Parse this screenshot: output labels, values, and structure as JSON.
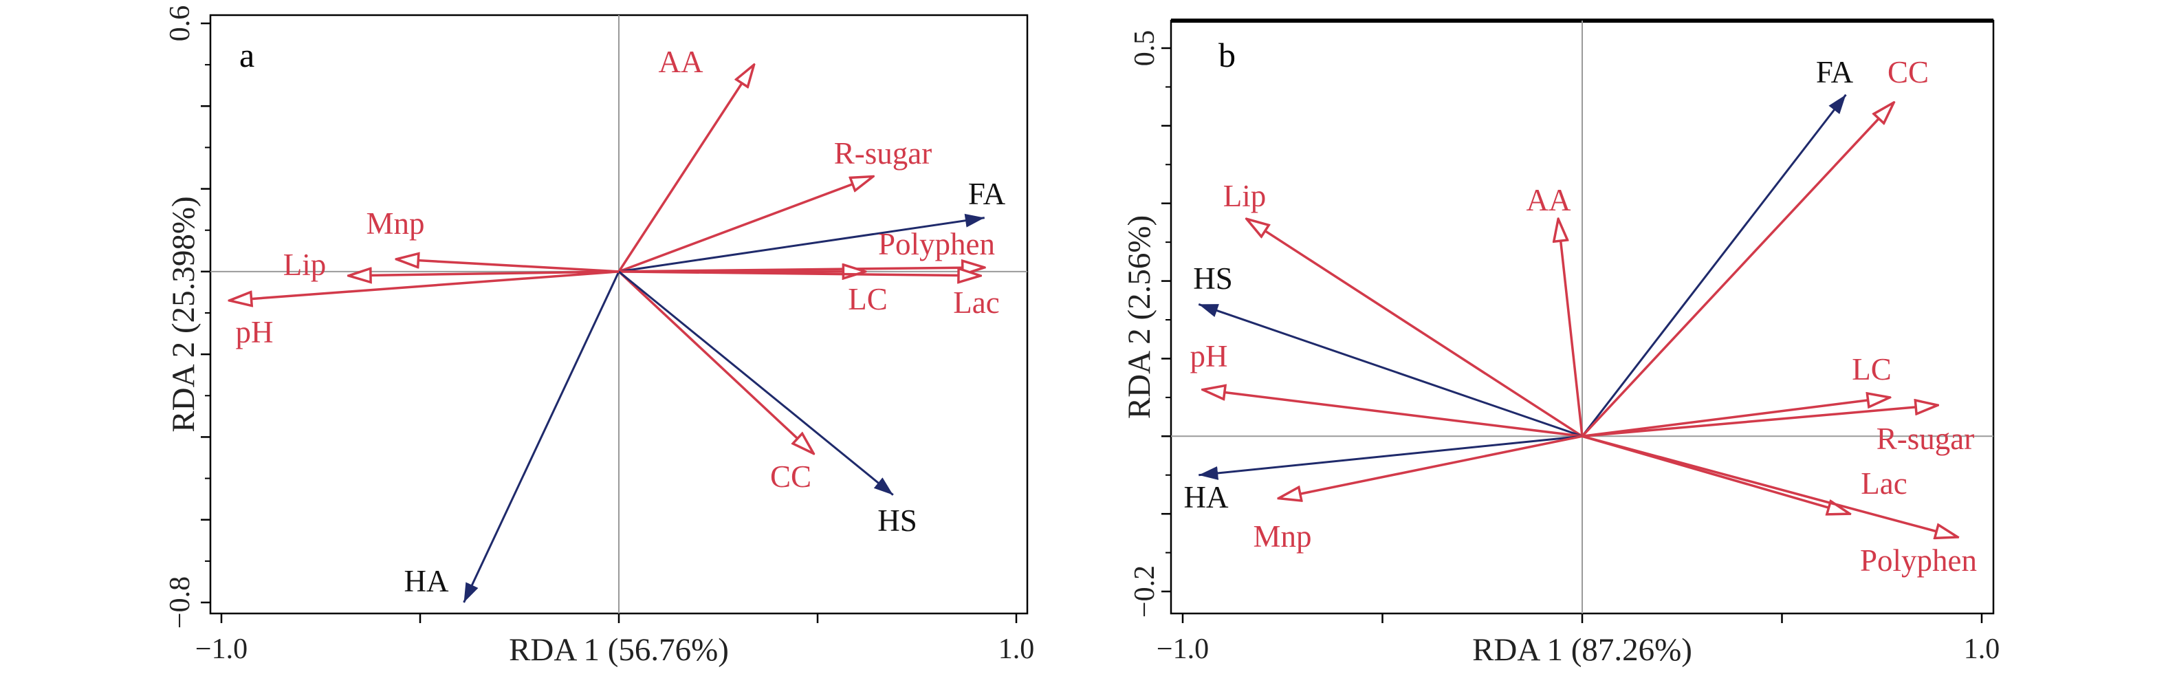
{
  "colors": {
    "response_arrow": "#d23a4a",
    "explanatory_arrow": "#1f2a6b",
    "response_label": "#d23a4a",
    "explanatory_label": "#111111",
    "frame": "#000000",
    "zero_line": "#9a9a9a"
  },
  "chart_data": [
    {
      "type": "scatter",
      "subtype": "biplot-arrows",
      "panel_label": "a",
      "xlabel": "RDA 1 (56.76%)",
      "ylabel": "RDA 2 (25.398%)",
      "xlim": [
        -1.0,
        1.0
      ],
      "ylim": [
        -0.8,
        0.6
      ],
      "x_tick_labels": [
        {
          "value": -1.0,
          "label": "−1.0"
        },
        {
          "value": 1.0,
          "label": "1.0"
        }
      ],
      "y_tick_labels": [
        {
          "value": -0.8,
          "label": "−0.8"
        },
        {
          "value": 0.6,
          "label": "0.6"
        }
      ],
      "zero_lines": true,
      "arrows": [
        {
          "name": "AA",
          "x": 0.34,
          "y": 0.5,
          "kind": "response"
        },
        {
          "name": "R-sugar",
          "x": 0.64,
          "y": 0.23,
          "kind": "response"
        },
        {
          "name": "FA",
          "x": 0.92,
          "y": 0.13,
          "kind": "explanatory"
        },
        {
          "name": "Polyphen",
          "x": 0.92,
          "y": 0.01,
          "kind": "response"
        },
        {
          "name": "LC",
          "x": 0.62,
          "y": 0.0,
          "kind": "response"
        },
        {
          "name": "Lac",
          "x": 0.91,
          "y": -0.01,
          "kind": "response"
        },
        {
          "name": "CC",
          "x": 0.49,
          "y": -0.44,
          "kind": "response"
        },
        {
          "name": "HS",
          "x": 0.69,
          "y": -0.54,
          "kind": "explanatory"
        },
        {
          "name": "HA",
          "x": -0.39,
          "y": -0.8,
          "kind": "explanatory"
        },
        {
          "name": "Mnp",
          "x": -0.56,
          "y": 0.03,
          "kind": "response"
        },
        {
          "name": "Lip",
          "x": -0.68,
          "y": -0.01,
          "kind": "response"
        },
        {
          "name": "pH",
          "x": -0.98,
          "y": -0.07,
          "kind": "response"
        }
      ]
    },
    {
      "type": "scatter",
      "subtype": "biplot-arrows",
      "panel_label": "b",
      "xlabel": "RDA 1 (87.26%)",
      "ylabel": "RDA 2 (2.56%)",
      "xlim": [
        -1.0,
        1.0
      ],
      "ylim": [
        -0.2,
        0.5
      ],
      "x_tick_labels": [
        {
          "value": -1.0,
          "label": "−1.0"
        },
        {
          "value": 1.0,
          "label": "1.0"
        }
      ],
      "y_tick_labels": [
        {
          "value": -0.2,
          "label": "−0.2"
        },
        {
          "value": 0.5,
          "label": "0.5"
        }
      ],
      "zero_lines": true,
      "arrows": [
        {
          "name": "FA",
          "x": 0.66,
          "y": 0.44,
          "kind": "explanatory"
        },
        {
          "name": "CC",
          "x": 0.78,
          "y": 0.43,
          "kind": "response"
        },
        {
          "name": "AA",
          "x": -0.06,
          "y": 0.28,
          "kind": "response"
        },
        {
          "name": "Lip",
          "x": -0.84,
          "y": 0.28,
          "kind": "response"
        },
        {
          "name": "HS",
          "x": -0.96,
          "y": 0.17,
          "kind": "explanatory"
        },
        {
          "name": "pH",
          "x": -0.95,
          "y": 0.06,
          "kind": "response"
        },
        {
          "name": "LC",
          "x": 0.77,
          "y": 0.05,
          "kind": "response"
        },
        {
          "name": "R-sugar",
          "x": 0.89,
          "y": 0.04,
          "kind": "response"
        },
        {
          "name": "HA",
          "x": -0.96,
          "y": -0.05,
          "kind": "explanatory"
        },
        {
          "name": "Mnp",
          "x": -0.76,
          "y": -0.08,
          "kind": "response"
        },
        {
          "name": "Lac",
          "x": 0.67,
          "y": -0.1,
          "kind": "response"
        },
        {
          "name": "Polyphen",
          "x": 0.94,
          "y": -0.13,
          "kind": "response"
        }
      ]
    }
  ]
}
